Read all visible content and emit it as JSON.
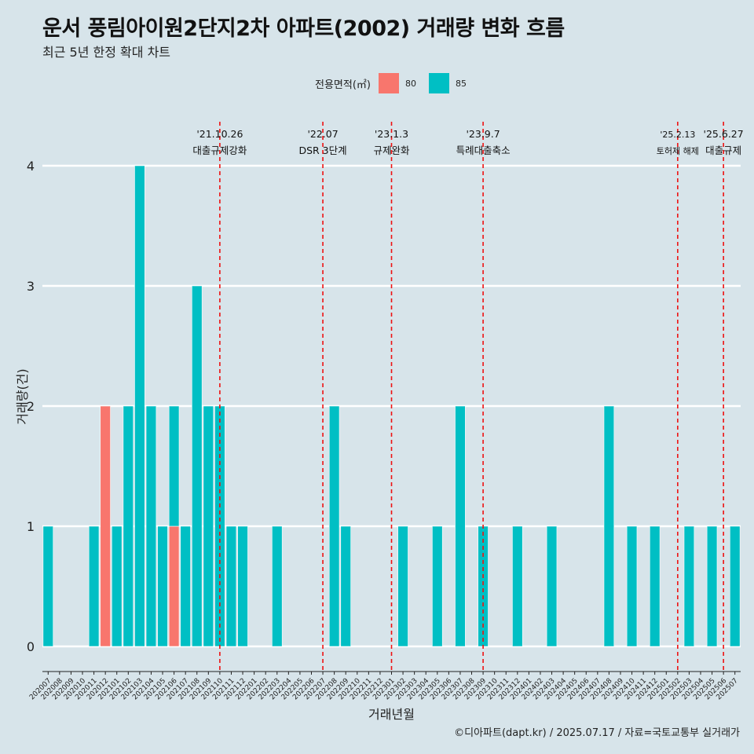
{
  "title": "운서 풍림아이원2단지2차 아파트(2002) 거래량 변화 흐름",
  "subtitle": "최근 5년 한정 확대 차트",
  "caption": "©디아파트(dapt.kr) / 2025.07.17 / 자료=국토교통부 실거래가",
  "legend": {
    "title": "전용면적(㎡)",
    "items": [
      {
        "label": "80",
        "color": "#f8766d"
      },
      {
        "label": "85",
        "color": "#00bfc4"
      }
    ]
  },
  "chart_data": {
    "type": "bar",
    "xlabel": "거래년월",
    "ylabel": "거래량(건)",
    "ylim": [
      0,
      4
    ],
    "yticks": [
      0,
      1,
      2,
      3,
      4
    ],
    "grid": true,
    "legend_position": "top",
    "categories": [
      "202007",
      "202008",
      "202009",
      "202010",
      "202011",
      "202012",
      "202101",
      "202102",
      "202103",
      "202104",
      "202105",
      "202106",
      "202107",
      "202108",
      "202109",
      "202110",
      "202111",
      "202112",
      "202201",
      "202202",
      "202203",
      "202204",
      "202205",
      "202206",
      "202207",
      "202208",
      "202209",
      "202210",
      "202211",
      "202212",
      "202301",
      "202302",
      "202303",
      "202304",
      "202305",
      "202306",
      "202307",
      "202308",
      "202309",
      "202310",
      "202311",
      "202312",
      "202401",
      "202402",
      "202403",
      "202404",
      "202405",
      "202406",
      "202407",
      "202408",
      "202409",
      "202410",
      "202411",
      "202412",
      "202501",
      "202502",
      "202503",
      "202504",
      "202505",
      "202506",
      "202507"
    ],
    "series": [
      {
        "name": "80",
        "values": [
          0,
          0,
          0,
          0,
          0,
          2,
          0,
          0,
          0,
          0,
          0,
          1,
          0,
          0,
          0,
          0,
          0,
          0,
          0,
          0,
          0,
          0,
          0,
          0,
          0,
          0,
          0,
          0,
          0,
          0,
          0,
          0,
          0,
          0,
          0,
          0,
          0,
          0,
          0,
          0,
          0,
          0,
          0,
          0,
          0,
          0,
          0,
          0,
          0,
          0,
          0,
          0,
          0,
          0,
          0,
          0,
          0,
          0,
          0,
          0,
          0
        ]
      },
      {
        "name": "85",
        "values": [
          1,
          0,
          0,
          0,
          1,
          0,
          1,
          2,
          4,
          2,
          1,
          1,
          1,
          3,
          2,
          2,
          1,
          1,
          0,
          0,
          1,
          0,
          0,
          0,
          0,
          2,
          1,
          0,
          0,
          0,
          0,
          1,
          0,
          0,
          1,
          0,
          2,
          0,
          1,
          0,
          0,
          1,
          0,
          0,
          1,
          0,
          0,
          0,
          0,
          2,
          0,
          1,
          0,
          1,
          0,
          0,
          1,
          0,
          1,
          0,
          1
        ]
      }
    ],
    "annotations": [
      {
        "x": "202110",
        "date": "'21.10.26",
        "text": "대출규제강화"
      },
      {
        "x": "202207",
        "date": "'22.07",
        "text": "DSR 3단계"
      },
      {
        "x": "202301",
        "date": "'23.1.3",
        "text": "규제완화"
      },
      {
        "x": "202309",
        "date": "'23.9.7",
        "text": "특례대출축소"
      },
      {
        "x": "202502",
        "date": "'25.2.13",
        "text": "토허제 해제"
      },
      {
        "x": "202506",
        "date": "'25.6.27",
        "text": "대출규제"
      }
    ]
  }
}
